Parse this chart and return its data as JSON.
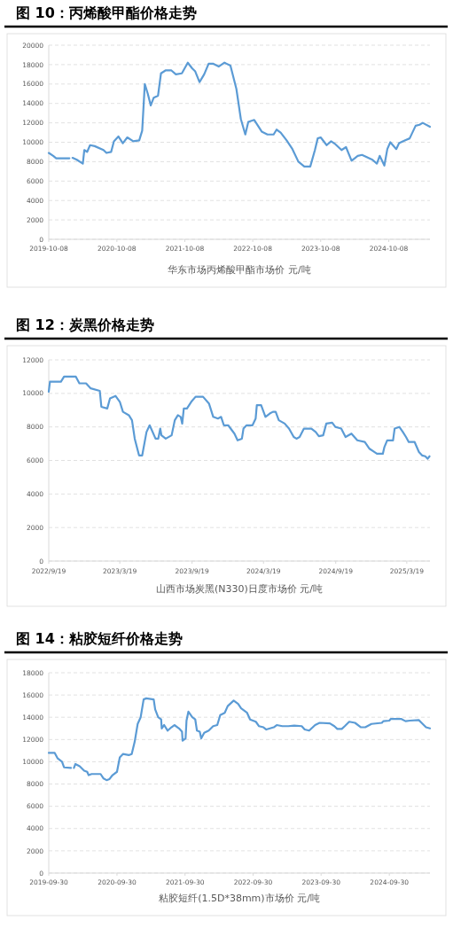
{
  "chart_data": [
    {
      "type": "line",
      "title": "图 10：丙烯酸甲酯价格走势",
      "xlabel": "华东市场丙烯酸甲酯市场价 元/吨",
      "grid": "y",
      "x": [
        "2019-10-08",
        "2019-11-01",
        "2019-11-17",
        "2020-01-27",
        "2020-02-05",
        "2020-02-13",
        "2020-03-07",
        "2020-04-08",
        "2020-04-16",
        "2020-05-01",
        "2020-05-17",
        "2020-06-11",
        "2020-07-28",
        "2020-08-13",
        "2020-09-07",
        "2020-09-22",
        "2020-10-16",
        "2020-11-09",
        "2020-12-03",
        "2021-01-04",
        "2021-02-05",
        "2021-02-21",
        "2021-03-07",
        "2021-03-23",
        "2021-04-08",
        "2021-04-24",
        "2021-05-17",
        "2021-06-02",
        "2021-06-26",
        "2021-07-28",
        "2021-08-21",
        "2021-09-22",
        "2021-10-24",
        "2021-11-17",
        "2021-12-03",
        "2021-12-26",
        "2022-01-20",
        "2022-02-13",
        "2022-03-08",
        "2022-04-08",
        "2022-05-09",
        "2022-06-10",
        "2022-07-12",
        "2022-08-05",
        "2022-08-29",
        "2022-09-14",
        "2022-10-16",
        "2022-11-25",
        "2022-12-26",
        "2023-01-28",
        "2023-02-13",
        "2023-03-07",
        "2023-04-08",
        "2023-05-09",
        "2023-06-10",
        "2023-07-12",
        "2023-08-13",
        "2023-09-07",
        "2023-09-22",
        "2023-10-08",
        "2023-11-09",
        "2023-12-03",
        "2023-12-26",
        "2024-01-28",
        "2024-02-21",
        "2024-03-22",
        "2024-04-24",
        "2024-05-17",
        "2024-07-12",
        "2024-08-05",
        "2024-08-20",
        "2024-09-14",
        "2024-09-30",
        "2024-10-16",
        "2024-11-17",
        "2024-12-02",
        "2025-01-04",
        "2025-01-28",
        "2025-03-01",
        "2025-03-22",
        "2025-04-08",
        "2025-05-17"
      ],
      "series": [
        {
          "color": "#5b9bd5",
          "values": [
            8900,
            8600,
            8350,
            8350,
            null,
            8400,
            8200,
            7800,
            9200,
            9000,
            9700,
            9600,
            9200,
            8900,
            9000,
            10100,
            10600,
            9900,
            10500,
            10100,
            10200,
            11200,
            16000,
            15000,
            13800,
            14600,
            14800,
            17100,
            17400,
            17400,
            17000,
            17100,
            18200,
            17600,
            17300,
            16200,
            17000,
            18100,
            18100,
            17800,
            18200,
            17900,
            15500,
            12400,
            10800,
            12100,
            12300,
            11100,
            10800,
            10800,
            11300,
            11000,
            10200,
            9300,
            8000,
            7500,
            7500,
            9200,
            10400,
            10500,
            9700,
            10100,
            9800,
            9200,
            9500,
            8100,
            8600,
            8700,
            8200,
            7800,
            8600,
            7600,
            9300,
            10000,
            9300,
            9900,
            10200,
            10400,
            11700,
            11800,
            12000,
            11600
          ]
        }
      ],
      "xlim": [
        "2019-10-08",
        "2025-05-17"
      ],
      "xticks": [
        "2019-10-08",
        "2020-10-08",
        "2021-10-08",
        "2022-10-08",
        "2023-10-08",
        "2024-10-08"
      ],
      "ylim": [
        0,
        20000
      ],
      "yticks": [
        0,
        2000,
        4000,
        6000,
        8000,
        10000,
        12000,
        14000,
        16000,
        18000,
        20000
      ]
    },
    {
      "type": "line",
      "title": "图 12：炭黑价格走势",
      "xlabel": "山西市场炭黑(N330)日度市场价 元/吨",
      "grid": "y",
      "x": [
        "2022-09-19",
        "2022-09-22",
        "2022-10-20",
        "2022-10-28",
        "2022-11-27",
        "2022-12-06",
        "2022-12-23",
        "2023-01-04",
        "2023-01-27",
        "2023-01-31",
        "2023-02-15",
        "2023-02-22",
        "2023-03-08",
        "2023-03-19",
        "2023-03-27",
        "2023-04-11",
        "2023-04-19",
        "2023-04-26",
        "2023-05-07",
        "2023-05-15",
        "2023-05-26",
        "2023-06-03",
        "2023-06-18",
        "2023-06-25",
        "2023-06-30",
        "2023-07-03",
        "2023-07-14",
        "2023-07-29",
        "2023-08-06",
        "2023-08-14",
        "2023-08-21",
        "2023-08-25",
        "2023-08-29",
        "2023-09-06",
        "2023-09-17",
        "2023-09-28",
        "2023-10-17",
        "2023-11-01",
        "2023-11-12",
        "2023-11-24",
        "2023-12-02",
        "2023-12-09",
        "2023-12-20",
        "2024-01-05",
        "2024-01-13",
        "2024-01-24",
        "2024-01-28",
        "2024-02-05",
        "2024-02-20",
        "2024-02-28",
        "2024-03-02",
        "2024-03-13",
        "2024-03-24",
        "2024-04-04",
        "2024-04-12",
        "2024-04-19",
        "2024-04-27",
        "2024-05-12",
        "2024-05-23",
        "2024-06-04",
        "2024-06-11",
        "2024-06-19",
        "2024-06-30",
        "2024-07-19",
        "2024-07-30",
        "2024-08-07",
        "2024-08-18",
        "2024-08-26",
        "2024-09-10",
        "2024-09-18",
        "2024-10-03",
        "2024-10-14",
        "2024-10-29",
        "2024-11-13",
        "2024-12-02",
        "2024-12-14",
        "2025-01-02",
        "2025-01-17",
        "2025-01-21",
        "2025-01-28",
        "2025-02-12",
        "2025-02-16",
        "2025-02-28",
        "2025-03-09",
        "2025-03-17",
        "2025-03-24",
        "2025-04-08",
        "2025-04-19",
        "2025-04-27",
        "2025-05-05",
        "2025-05-11",
        "2025-05-16"
      ],
      "series": [
        {
          "color": "#5b9bd5",
          "values": [
            10100,
            10700,
            10700,
            11000,
            11000,
            10600,
            10600,
            10300,
            10150,
            9200,
            9100,
            9700,
            9850,
            9500,
            8900,
            8700,
            8400,
            7300,
            6300,
            6300,
            7700,
            8100,
            7300,
            7300,
            7900,
            7500,
            7300,
            7500,
            8400,
            8700,
            8600,
            8200,
            9100,
            9100,
            9500,
            9800,
            9800,
            9400,
            8600,
            8500,
            8600,
            8100,
            8100,
            7600,
            7200,
            7300,
            7900,
            8100,
            8100,
            8500,
            9300,
            9300,
            8600,
            8800,
            8900,
            8900,
            8400,
            8200,
            7900,
            7400,
            7300,
            7400,
            7900,
            7900,
            7700,
            7450,
            7500,
            8200,
            8250,
            8000,
            7900,
            7400,
            7600,
            7200,
            7100,
            6700,
            6400,
            6400,
            6800,
            7200,
            7200,
            7900,
            8000,
            7700,
            7400,
            7100,
            7100,
            6500,
            6300,
            6250,
            6100,
            6250
          ]
        }
      ],
      "xlim": [
        "2022-09-19",
        "2025-05-17"
      ],
      "xticks": [
        {
          "value": "2022-09-19",
          "label": "2022/9/19"
        },
        {
          "value": "2023-03-19",
          "label": "2023/3/19"
        },
        {
          "value": "2023-09-19",
          "label": "2023/9/19"
        },
        {
          "value": "2024-03-19",
          "label": "2024/3/19"
        },
        {
          "value": "2024-09-19",
          "label": "2024/9/19"
        },
        {
          "value": "2025-03-19",
          "label": "2025/3/19"
        }
      ],
      "ylim": [
        0,
        12000
      ],
      "yticks": [
        0,
        2000,
        4000,
        6000,
        8000,
        10000,
        12000
      ]
    },
    {
      "type": "line",
      "title": "图 14：粘胶短纤价格走势",
      "xlabel": "粘胶短纤(1.5D*38mm)市场价 元/吨",
      "grid": "y",
      "x": [
        "2019-09-30",
        "2019-11-01",
        "2019-11-17",
        "2019-12-10",
        "2019-12-21",
        "2020-01-27",
        "2020-02-05",
        "2020-02-12",
        "2020-02-20",
        "2020-03-14",
        "2020-04-07",
        "2020-04-23",
        "2020-05-01",
        "2020-05-17",
        "2020-07-04",
        "2020-07-20",
        "2020-08-05",
        "2020-08-21",
        "2020-09-06",
        "2020-09-30",
        "2020-10-15",
        "2020-11-01",
        "2020-12-02",
        "2020-12-18",
        "2021-01-03",
        "2021-01-19",
        "2021-02-04",
        "2021-02-20",
        "2021-03-06",
        "2021-04-15",
        "2021-04-23",
        "2021-05-09",
        "2021-05-25",
        "2021-05-28",
        "2021-06-10",
        "2021-06-29",
        "2021-07-19",
        "2021-08-04",
        "2021-08-29",
        "2021-09-14",
        "2021-09-17",
        "2021-10-03",
        "2021-10-08",
        "2021-10-18",
        "2021-11-08",
        "2021-11-24",
        "2021-12-03",
        "2021-12-18",
        "2021-12-26",
        "2022-01-11",
        "2022-02-04",
        "2022-02-28",
        "2022-03-22",
        "2022-04-07",
        "2022-05-01",
        "2022-05-17",
        "2022-06-18",
        "2022-07-12",
        "2022-07-28",
        "2022-08-29",
        "2022-09-14",
        "2022-10-15",
        "2022-11-01",
        "2022-11-25",
        "2022-12-10",
        "2023-01-19",
        "2023-02-04",
        "2023-03-06",
        "2023-04-07",
        "2023-05-09",
        "2023-06-18",
        "2023-07-04",
        "2023-07-28",
        "2023-08-29",
        "2023-09-22",
        "2023-11-16",
        "2023-12-10",
        "2023-12-26",
        "2024-01-19",
        "2024-02-04",
        "2024-02-28",
        "2024-03-30",
        "2024-05-01",
        "2024-05-24",
        "2024-06-26",
        "2024-08-21",
        "2024-08-29",
        "2024-09-30",
        "2024-10-08",
        "2024-12-02",
        "2024-12-26",
        "2025-01-19",
        "2025-03-07",
        "2025-03-22",
        "2025-04-15",
        "2025-05-06"
      ],
      "series": [
        {
          "color": "#5b9bd5",
          "values": [
            10800,
            10800,
            10300,
            10000,
            9500,
            9450,
            null,
            9450,
            9800,
            9600,
            9200,
            9100,
            8800,
            8900,
            8900,
            8500,
            8350,
            8450,
            8800,
            9100,
            10400,
            10700,
            10600,
            10700,
            11800,
            13400,
            14000,
            15600,
            15700,
            15600,
            14700,
            14000,
            13800,
            13000,
            13300,
            12800,
            13100,
            13300,
            13000,
            12700,
            11900,
            12100,
            13700,
            14500,
            14000,
            13800,
            12800,
            12700,
            12100,
            12600,
            12800,
            13200,
            13300,
            14200,
            14400,
            15000,
            15500,
            15200,
            14800,
            14400,
            13800,
            13600,
            13200,
            13100,
            12900,
            13100,
            13300,
            13200,
            13200,
            13250,
            13200,
            12900,
            12800,
            13300,
            13500,
            13450,
            13200,
            12950,
            12950,
            13200,
            13600,
            13500,
            13100,
            13100,
            13400,
            13500,
            13650,
            13700,
            13850,
            13850,
            13650,
            13700,
            13750,
            13500,
            13100,
            13000
          ]
        }
      ],
      "xlim": [
        "2019-09-30",
        "2025-05-06"
      ],
      "xticks": [
        "2019-09-30",
        "2020-09-30",
        "2021-09-30",
        "2022-09-30",
        "2023-09-30",
        "2024-09-30"
      ],
      "ylim": [
        0,
        18000
      ],
      "yticks": [
        0,
        2000,
        4000,
        6000,
        8000,
        10000,
        12000,
        14000,
        16000,
        18000
      ]
    }
  ]
}
